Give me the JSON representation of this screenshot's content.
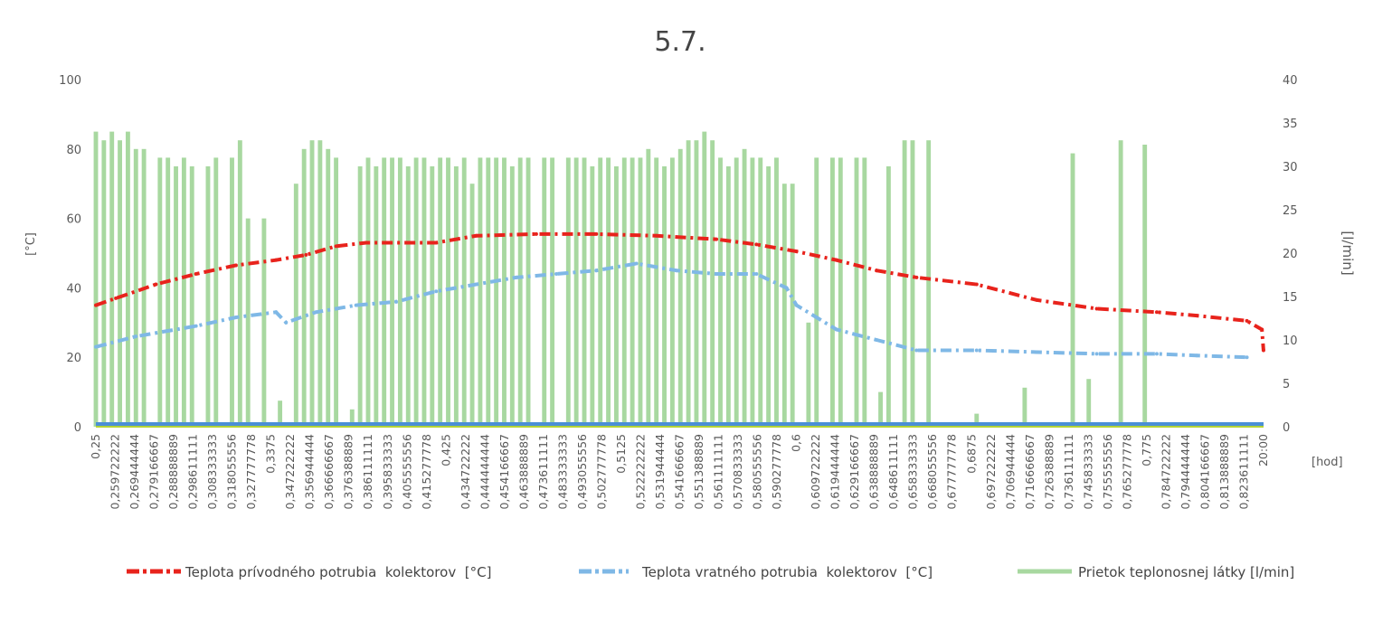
{
  "chart_data": {
    "type": "line",
    "title": "5.7.",
    "xlabel": "[hod]",
    "ylabel": "[°C]",
    "y2label": "[l/min]",
    "ylim": [
      0,
      100
    ],
    "y2lim": [
      0,
      40
    ],
    "xlim": [
      0.25,
      0.8333333
    ],
    "yticks": [
      "0",
      "20",
      "40",
      "60",
      "80",
      "100"
    ],
    "y2ticks": [
      "0",
      "5",
      "10",
      "15",
      "20",
      "25",
      "30",
      "35",
      "40"
    ],
    "xtick_labels": [
      "0,25",
      "0,259722222",
      "0,269444444",
      "0,279166667",
      "0,288888889",
      "0,298611111",
      "0,308333333",
      "0,318055556",
      "0,327777778",
      "0,3375",
      "0,347222222",
      "0,356944444",
      "0,366666667",
      "0,376388889",
      "0,386111111",
      "0,395833333",
      "0,405555556",
      "0,415277778",
      "0,425",
      "0,434722222",
      "0,444444444",
      "0,454166667",
      "0,463888889",
      "0,473611111",
      "0,483333333",
      "0,493055556",
      "0,502777778",
      "0,5125",
      "0,522222222",
      "0,531944444",
      "0,541666667",
      "0,551388889",
      "0,561111111",
      "0,570833333",
      "0,580555556",
      "0,590277778",
      "0,6",
      "0,609722222",
      "0,619444444",
      "0,629166667",
      "0,638888889",
      "0,648611111",
      "0,658333333",
      "0,668055556",
      "0,677777778",
      "0,6875",
      "0,697222222",
      "0,706944444",
      "0,716666667",
      "0,726388889",
      "0,736111111",
      "0,745833333",
      "0,755555556",
      "0,765277778",
      "0,775",
      "0,784722222",
      "0,794444444",
      "0,804166667",
      "0,813888889",
      "0,823611111",
      "20:00"
    ],
    "series": [
      {
        "name": "Teplota prívodného potrubia  kolektorov  [°C]",
        "color": "#e8231c",
        "axis": "left",
        "x": [
          0.25,
          0.26,
          0.28,
          0.3,
          0.32,
          0.34,
          0.355,
          0.37,
          0.385,
          0.42,
          0.44,
          0.47,
          0.5,
          0.53,
          0.56,
          0.58,
          0.6,
          0.62,
          0.64,
          0.66,
          0.69,
          0.72,
          0.75,
          0.78,
          0.8,
          0.825,
          0.8325,
          0.8333
        ],
        "y": [
          35,
          37,
          41,
          44,
          46.5,
          48,
          49.5,
          52,
          53,
          53,
          55,
          55.5,
          55.5,
          55,
          54,
          52.5,
          50.5,
          48,
          45,
          43,
          41,
          36.5,
          34,
          33,
          32,
          30.5,
          28,
          22
        ]
      },
      {
        "name": "Teplota vratného potrubia  kolektorov  [°C]",
        "color": "#7fb8e6",
        "axis": "left",
        "x": [
          0.25,
          0.27,
          0.3,
          0.32,
          0.34,
          0.345,
          0.36,
          0.38,
          0.4,
          0.42,
          0.44,
          0.46,
          0.48,
          0.5,
          0.52,
          0.54,
          0.56,
          0.58,
          0.595,
          0.6,
          0.62,
          0.64,
          0.66,
          0.69,
          0.72,
          0.75,
          0.78,
          0.8,
          0.825
        ],
        "y": [
          23,
          26,
          29,
          31.5,
          33,
          30,
          33,
          35,
          36,
          39,
          41,
          43,
          44,
          45,
          47,
          45,
          44,
          44,
          40,
          35,
          28,
          25,
          22,
          22,
          21.5,
          21,
          21,
          20.5,
          20
        ]
      },
      {
        "name": "Prietok teplonosnej látky [l/min]",
        "color": "#a8d8a0",
        "axis": "right",
        "x_start": 0.25,
        "x_step": 0.004,
        "values": [
          34,
          33,
          34,
          33,
          34,
          32,
          32,
          0,
          31,
          31,
          30,
          31,
          30,
          0,
          30,
          31,
          0,
          31,
          33,
          24,
          0,
          24,
          0,
          3,
          0,
          28,
          32,
          33,
          33,
          32,
          31,
          0,
          2,
          30,
          31,
          30,
          31,
          31,
          31,
          30,
          31,
          31,
          30,
          31,
          31,
          30,
          31,
          28,
          31,
          31,
          31,
          31,
          30,
          31,
          31,
          0,
          31,
          31,
          0,
          31,
          31,
          31,
          30,
          31,
          31,
          30,
          31,
          31,
          31,
          32,
          31,
          30,
          31,
          32,
          33,
          33,
          34,
          33,
          31,
          30,
          31,
          32,
          31,
          31,
          30,
          31,
          28,
          28,
          0,
          12,
          31,
          0,
          31,
          31,
          0,
          31,
          31,
          0,
          4,
          30,
          0,
          33,
          33,
          0,
          33,
          0,
          0,
          0,
          0,
          0,
          1.5,
          0,
          0,
          0,
          0,
          0,
          4.5,
          0,
          0,
          0,
          0,
          0,
          31.5,
          0,
          5.5,
          0,
          0,
          0,
          33,
          0,
          0,
          32.5,
          0,
          0,
          0,
          0,
          0,
          0,
          0,
          0,
          0,
          0,
          0,
          0,
          0,
          0
        ]
      }
    ],
    "legend": "bottom"
  }
}
